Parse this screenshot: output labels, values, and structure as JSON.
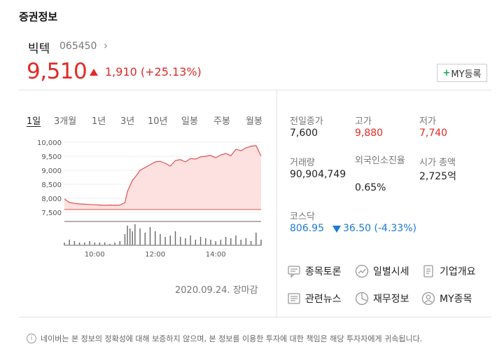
{
  "section_title": "증권정보",
  "stock": {
    "name": "빅텍",
    "code": "065450",
    "price": "9,510",
    "change": "1,910 (+25.13%)",
    "my_button": "MY등록"
  },
  "tabs": [
    "1일",
    "3개월",
    "1년",
    "3년",
    "10년",
    "일봉",
    "주봉",
    "월봉"
  ],
  "active_tab": "1일",
  "chart_data": {
    "type": "area",
    "y_ticks": [
      "10,000",
      "9,500",
      "9,000",
      "8,500",
      "8,000",
      "7,500"
    ],
    "x_ticks": [
      "10:00",
      "12:00",
      "14:00"
    ],
    "ylim": [
      7500,
      10000
    ],
    "reference_line": 7600,
    "x": [
      "09:00",
      "09:10",
      "09:20",
      "09:30",
      "09:40",
      "09:50",
      "10:00",
      "10:10",
      "10:20",
      "10:30",
      "10:40",
      "10:50",
      "11:00",
      "11:05",
      "11:10",
      "11:15",
      "11:20",
      "11:30",
      "11:40",
      "11:50",
      "12:00",
      "12:10",
      "12:20",
      "12:30",
      "12:40",
      "12:50",
      "13:00",
      "13:10",
      "13:20",
      "13:30",
      "13:40",
      "13:50",
      "14:00",
      "14:10",
      "14:20",
      "14:30",
      "14:40",
      "14:50",
      "15:00",
      "15:10",
      "15:20",
      "15:30"
    ],
    "values": [
      7980,
      7850,
      7820,
      7800,
      7790,
      7780,
      7770,
      7760,
      7750,
      7760,
      7750,
      7760,
      7850,
      8250,
      8450,
      8650,
      8750,
      9000,
      9100,
      9200,
      9300,
      9320,
      9250,
      9150,
      9350,
      9380,
      9300,
      9420,
      9400,
      9480,
      9500,
      9530,
      9450,
      9550,
      9600,
      9520,
      9750,
      9700,
      9800,
      9860,
      9880,
      9510
    ],
    "volume": [
      2,
      4,
      3,
      2,
      2,
      3,
      2,
      2,
      2,
      1,
      2,
      3,
      8,
      14,
      12,
      10,
      15,
      12,
      9,
      13,
      10,
      8,
      6,
      7,
      10,
      6,
      5,
      7,
      4,
      6,
      5,
      4,
      3,
      4,
      6,
      5,
      7,
      4,
      5,
      3,
      9,
      4
    ]
  },
  "date_status": "2020.09.24. 장마감",
  "stats": [
    {
      "label": "전일종가",
      "value": "7,600",
      "color": "#222222"
    },
    {
      "label": "고가",
      "value": "9,880",
      "color": "#e12a26"
    },
    {
      "label": "저가",
      "value": "7,740",
      "color": "#e12a26"
    },
    {
      "label": "거래량",
      "value": "90,904,749",
      "color": "#222222"
    },
    {
      "label": "외국인소진율",
      "value": "0.65%",
      "color": "#222222"
    },
    {
      "label": "시가 총액",
      "value": "2,725억",
      "color": "#222222"
    }
  ],
  "kosdaq": {
    "label": "코스닥",
    "value": "806.95",
    "change": "36.50 (-4.33%)",
    "color": "#1a7bd8"
  },
  "links": [
    {
      "label": "종목토론",
      "icon": "comment-icon"
    },
    {
      "label": "일별시세",
      "icon": "trend-icon"
    },
    {
      "label": "기업개요",
      "icon": "document-icon"
    },
    {
      "label": "관련뉴스",
      "icon": "news-icon"
    },
    {
      "label": "재무정보",
      "icon": "pie-chart-icon"
    },
    {
      "label": "MY종목",
      "icon": "user-icon"
    }
  ],
  "notice": "네이버는 본 정보의 정확성에 대해 보증하지 않으며, 본 정보를 이용한 투자에 대한 책임은 해당 투자자에게 귀속됩니다.",
  "colors": {
    "up": "#e12a26",
    "down": "#1a7bd8",
    "accent": "#1aa84b"
  }
}
